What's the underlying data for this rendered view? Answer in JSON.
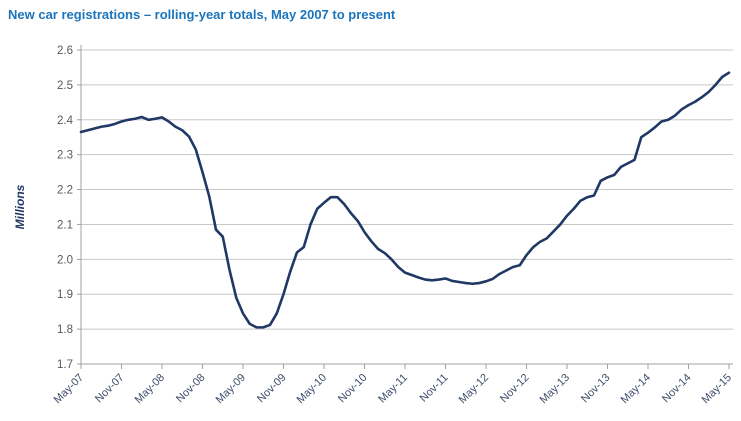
{
  "page": {
    "background": "#FFFFFF"
  },
  "chart": {
    "title": "New car registrations – rolling-year totals, May 2007 to present",
    "ylabel": "Millions"
  },
  "chart_data": {
    "type": "line",
    "title": "New car registrations – rolling-year totals, May 2007 to present",
    "xlabel": "",
    "ylabel": "Millions",
    "ylim": [
      1.7,
      2.6
    ],
    "y_tick_step": 0.1,
    "y_tick_labels": [
      "2.6",
      "2.5",
      "2.4",
      "2.3",
      "2.2",
      "2.1",
      "2.0",
      "1.9",
      "1.8",
      "1.7"
    ],
    "x_tick_labels": [
      "May-07",
      "Nov-07",
      "May-08",
      "Nov-08",
      "May-09",
      "Nov-09",
      "May-10",
      "Nov-10",
      "May-11",
      "Nov-11",
      "May-12",
      "Nov-12",
      "May-13",
      "Nov-13",
      "May-14",
      "Nov-14",
      "May-15"
    ],
    "grid": true,
    "legend": false,
    "months": [
      "May-07",
      "Jun-07",
      "Jul-07",
      "Aug-07",
      "Sep-07",
      "Oct-07",
      "Nov-07",
      "Dec-07",
      "Jan-08",
      "Feb-08",
      "Mar-08",
      "Apr-08",
      "May-08",
      "Jun-08",
      "Jul-08",
      "Aug-08",
      "Sep-08",
      "Oct-08",
      "Nov-08",
      "Dec-08",
      "Jan-09",
      "Feb-09",
      "Mar-09",
      "Apr-09",
      "May-09",
      "Jun-09",
      "Jul-09",
      "Aug-09",
      "Sep-09",
      "Oct-09",
      "Nov-09",
      "Dec-09",
      "Jan-10",
      "Feb-10",
      "Mar-10",
      "Apr-10",
      "May-10",
      "Jun-10",
      "Jul-10",
      "Aug-10",
      "Sep-10",
      "Oct-10",
      "Nov-10",
      "Dec-10",
      "Jan-11",
      "Feb-11",
      "Mar-11",
      "Apr-11",
      "May-11",
      "Jun-11",
      "Jul-11",
      "Aug-11",
      "Sep-11",
      "Oct-11",
      "Nov-11",
      "Dec-11",
      "Jan-12",
      "Feb-12",
      "Mar-12",
      "Apr-12",
      "May-12",
      "Jun-12",
      "Jul-12",
      "Aug-12",
      "Sep-12",
      "Oct-12",
      "Nov-12",
      "Dec-12",
      "Jan-13",
      "Feb-13",
      "Mar-13",
      "Apr-13",
      "May-13",
      "Jun-13",
      "Jul-13",
      "Aug-13",
      "Sep-13",
      "Oct-13",
      "Nov-13",
      "Dec-13",
      "Jan-14",
      "Feb-14",
      "Mar-14",
      "Apr-14",
      "May-14",
      "Jun-14",
      "Jul-14",
      "Aug-14",
      "Sep-14",
      "Oct-14",
      "Nov-14",
      "Dec-14",
      "Jan-15",
      "Feb-15",
      "Mar-15",
      "Apr-15",
      "May-15"
    ],
    "series": [
      {
        "name": "New car registrations, rolling-year total (millions)",
        "values": [
          2.365,
          2.37,
          2.375,
          2.38,
          2.383,
          2.388,
          2.395,
          2.4,
          2.403,
          2.408,
          2.4,
          2.403,
          2.407,
          2.395,
          2.38,
          2.37,
          2.352,
          2.315,
          2.25,
          2.18,
          2.085,
          2.065,
          1.97,
          1.89,
          1.845,
          1.815,
          1.805,
          1.805,
          1.812,
          1.845,
          1.9,
          1.965,
          2.02,
          2.035,
          2.1,
          2.145,
          2.162,
          2.178,
          2.178,
          2.158,
          2.132,
          2.11,
          2.078,
          2.052,
          2.03,
          2.018,
          2.0,
          1.978,
          1.962,
          1.955,
          1.948,
          1.942,
          1.94,
          1.942,
          1.945,
          1.938,
          1.935,
          1.932,
          1.93,
          1.932,
          1.937,
          1.944,
          1.958,
          1.968,
          1.978,
          1.983,
          2.012,
          2.035,
          2.05,
          2.06,
          2.08,
          2.1,
          2.125,
          2.145,
          2.168,
          2.178,
          2.183,
          2.225,
          2.235,
          2.242,
          2.265,
          2.275,
          2.285,
          2.35,
          2.363,
          2.378,
          2.395,
          2.4,
          2.412,
          2.43,
          2.442,
          2.452,
          2.465,
          2.48,
          2.5,
          2.523,
          2.535
        ]
      }
    ],
    "colors": {
      "title": "#1C75BC",
      "line": "#1F3864",
      "grid": "#C8C8C8",
      "axis": "#A0A0A0",
      "y_tick_text": "#595959",
      "x_tick_text": "#3F4E6D",
      "y_axis_title_text": "#1F3864"
    }
  }
}
